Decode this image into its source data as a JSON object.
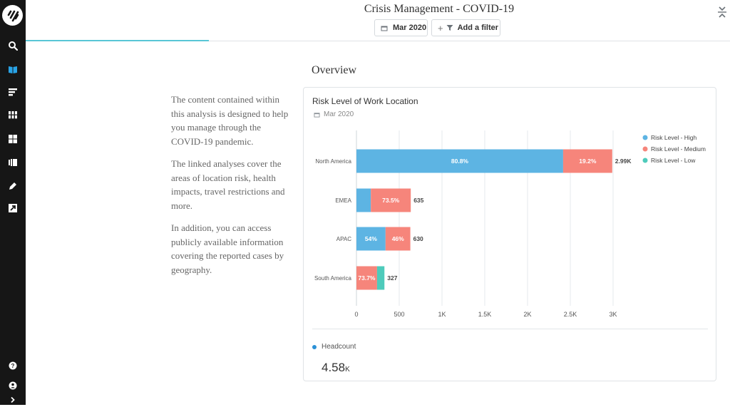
{
  "header": {
    "title": "Crisis Management - COVID-19",
    "date_chip": "Mar 2020",
    "filter_chip": "Add a filter"
  },
  "sidebar": {
    "items": [
      {
        "icon": "search-icon"
      },
      {
        "icon": "book-icon"
      },
      {
        "icon": "report-lines-icon"
      },
      {
        "icon": "apps-grid-icon"
      },
      {
        "icon": "dashboard-icon"
      },
      {
        "icon": "collections-icon"
      },
      {
        "icon": "pen-icon"
      },
      {
        "icon": "external-link-icon"
      }
    ],
    "footer": [
      {
        "icon": "help-icon"
      },
      {
        "icon": "user-icon"
      },
      {
        "icon": "chevron-right-icon"
      }
    ]
  },
  "overview": {
    "title": "Overview",
    "paragraphs": [
      "The content contained within this analysis is designed to help you manage through the COVID-19 pandemic.",
      "The linked analyses cover the areas of location risk, health impacts, travel restrictions and more.",
      "In addition, you can access publicly available information covering the reported cases by geography."
    ]
  },
  "card": {
    "title": "Risk Level of Work Location",
    "date": "Mar 2020",
    "metric": {
      "label": "Headcount",
      "value": "4.58",
      "unit": "K"
    }
  },
  "chart_data": {
    "type": "bar",
    "orientation": "horizontal",
    "stacked": true,
    "title": "Risk Level of Work Location",
    "categories": [
      "North America",
      "EMEA",
      "APAC",
      "South America"
    ],
    "totals": [
      2990,
      635,
      630,
      327
    ],
    "total_labels": [
      "2.99K",
      "635",
      "630",
      "327"
    ],
    "series": [
      {
        "name": "Risk Level - High",
        "color": "#5db4e3",
        "values": [
          2416,
          168,
          340,
          0
        ],
        "labels": [
          "80.8%",
          "",
          "54%",
          ""
        ]
      },
      {
        "name": "Risk Level - Medium",
        "color": "#f6857b",
        "values": [
          574,
          467,
          290,
          241
        ],
        "labels": [
          "19.2%",
          "73.5%",
          "46%",
          "73.7%"
        ]
      },
      {
        "name": "Risk Level - Low",
        "color": "#4ecbbb",
        "values": [
          0,
          0,
          0,
          86
        ],
        "labels": [
          "",
          "",
          "",
          ""
        ]
      }
    ],
    "xlim": [
      0,
      3000
    ],
    "xticks": [
      0,
      500,
      1000,
      1500,
      2000,
      2500,
      3000
    ],
    "xtick_labels": [
      "0",
      "500",
      "1K",
      "1.5K",
      "2K",
      "2.5K",
      "3K"
    ],
    "grid": true,
    "legend": "top-right"
  }
}
